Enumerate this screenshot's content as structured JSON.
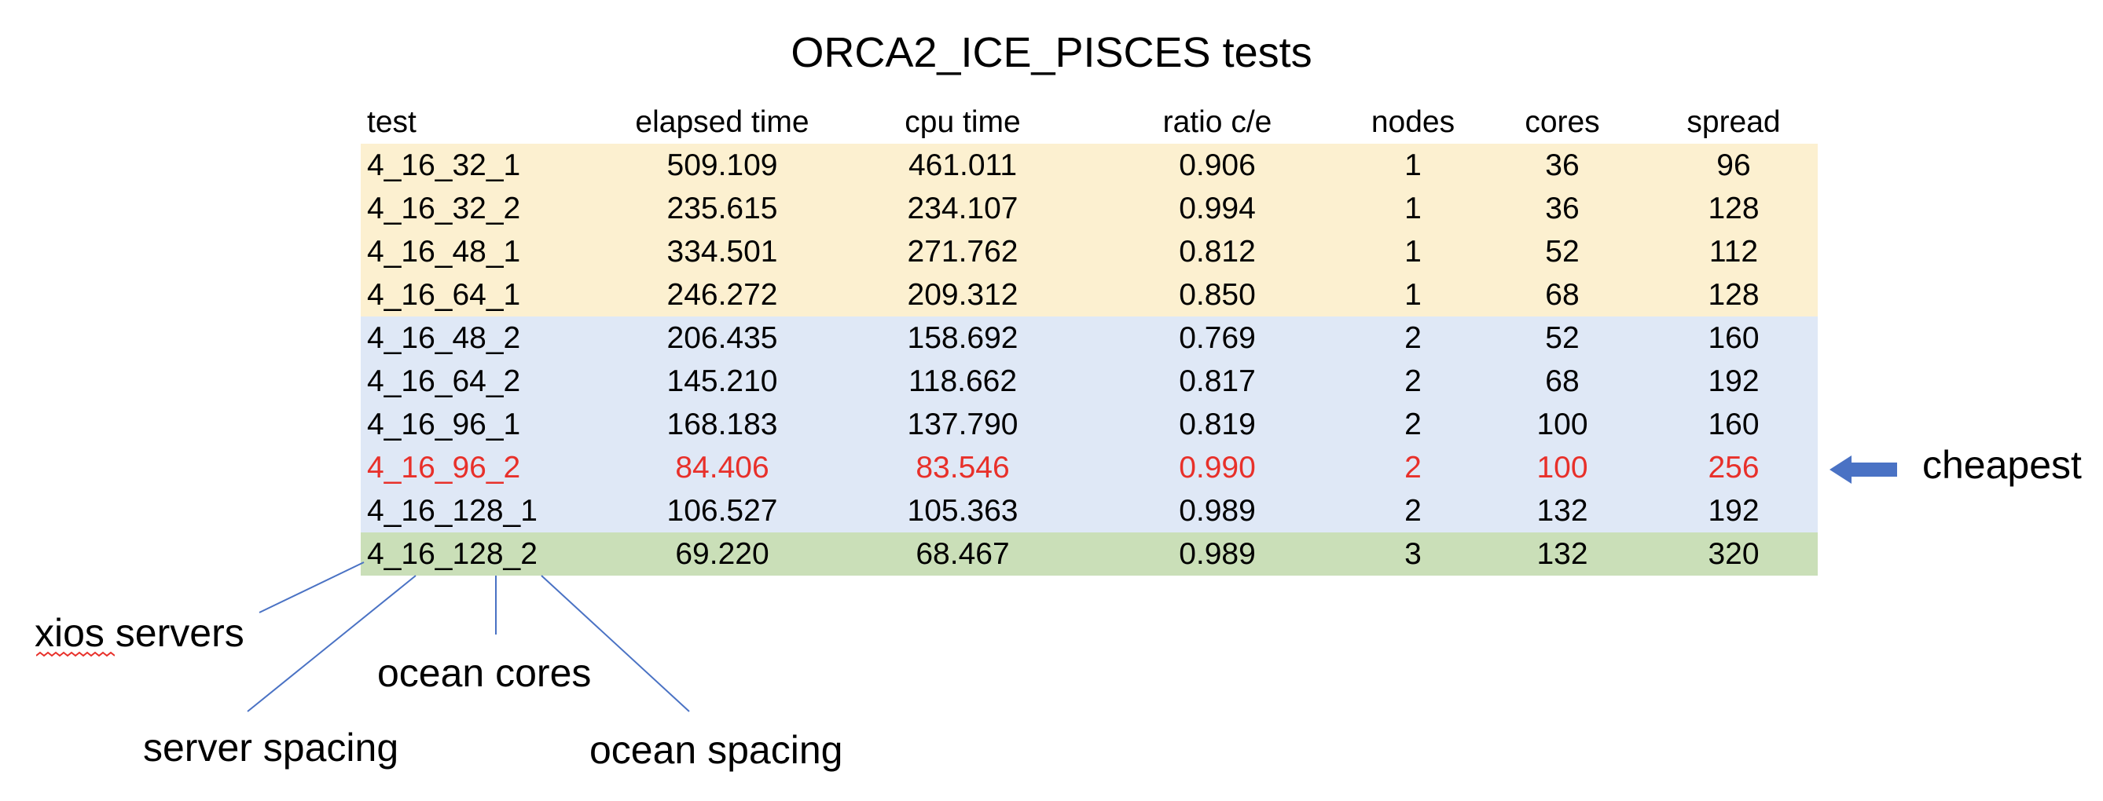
{
  "title": "ORCA2_ICE_PISCES tests",
  "table": {
    "headers": [
      "test",
      "elapsed time",
      "cpu time",
      "ratio c/e",
      "nodes",
      "cores",
      "spread"
    ],
    "rows": [
      {
        "cells": [
          "4_16_32_1",
          "509.109",
          "461.011",
          "0.906",
          "1",
          "36",
          "96"
        ],
        "band": 1,
        "highlight": false
      },
      {
        "cells": [
          "4_16_32_2",
          "235.615",
          "234.107",
          "0.994",
          "1",
          "36",
          "128"
        ],
        "band": 1,
        "highlight": false
      },
      {
        "cells": [
          "4_16_48_1",
          "334.501",
          "271.762",
          "0.812",
          "1",
          "52",
          "112"
        ],
        "band": 1,
        "highlight": false
      },
      {
        "cells": [
          "4_16_64_1",
          "246.272",
          "209.312",
          "0.850",
          "1",
          "68",
          "128"
        ],
        "band": 1,
        "highlight": false
      },
      {
        "cells": [
          "4_16_48_2",
          "206.435",
          "158.692",
          "0.769",
          "2",
          "52",
          "160"
        ],
        "band": 2,
        "highlight": false
      },
      {
        "cells": [
          "4_16_64_2",
          "145.210",
          "118.662",
          "0.817",
          "2",
          "68",
          "192"
        ],
        "band": 2,
        "highlight": false
      },
      {
        "cells": [
          "4_16_96_1",
          "168.183",
          "137.790",
          "0.819",
          "2",
          "100",
          "160"
        ],
        "band": 2,
        "highlight": false
      },
      {
        "cells": [
          "4_16_96_2",
          "84.406",
          "83.546",
          "0.990",
          "2",
          "100",
          "256"
        ],
        "band": 2,
        "highlight": true
      },
      {
        "cells": [
          "4_16_128_1",
          "106.527",
          "105.363",
          "0.989",
          "2",
          "132",
          "192"
        ],
        "band": 2,
        "highlight": false
      },
      {
        "cells": [
          "4_16_128_2",
          "69.220",
          "68.467",
          "0.989",
          "3",
          "132",
          "320"
        ],
        "band": 3,
        "highlight": false
      }
    ]
  },
  "callout": {
    "label": "cheapest",
    "icon": "left-arrow-icon"
  },
  "annotations": {
    "xios_servers": "xios servers",
    "ocean_cores": "ocean cores",
    "server_spacing": "server spacing",
    "ocean_spacing": "ocean spacing"
  },
  "colors": {
    "band_1": "#fcf0d0",
    "band_2": "#dfe8f6",
    "band_3": "#cadfb8",
    "highlight_text": "#e8302a",
    "arrow": "#4a72c4",
    "leader_line": "#4a72c4",
    "spellcheck_squiggle": "#e8302a"
  }
}
